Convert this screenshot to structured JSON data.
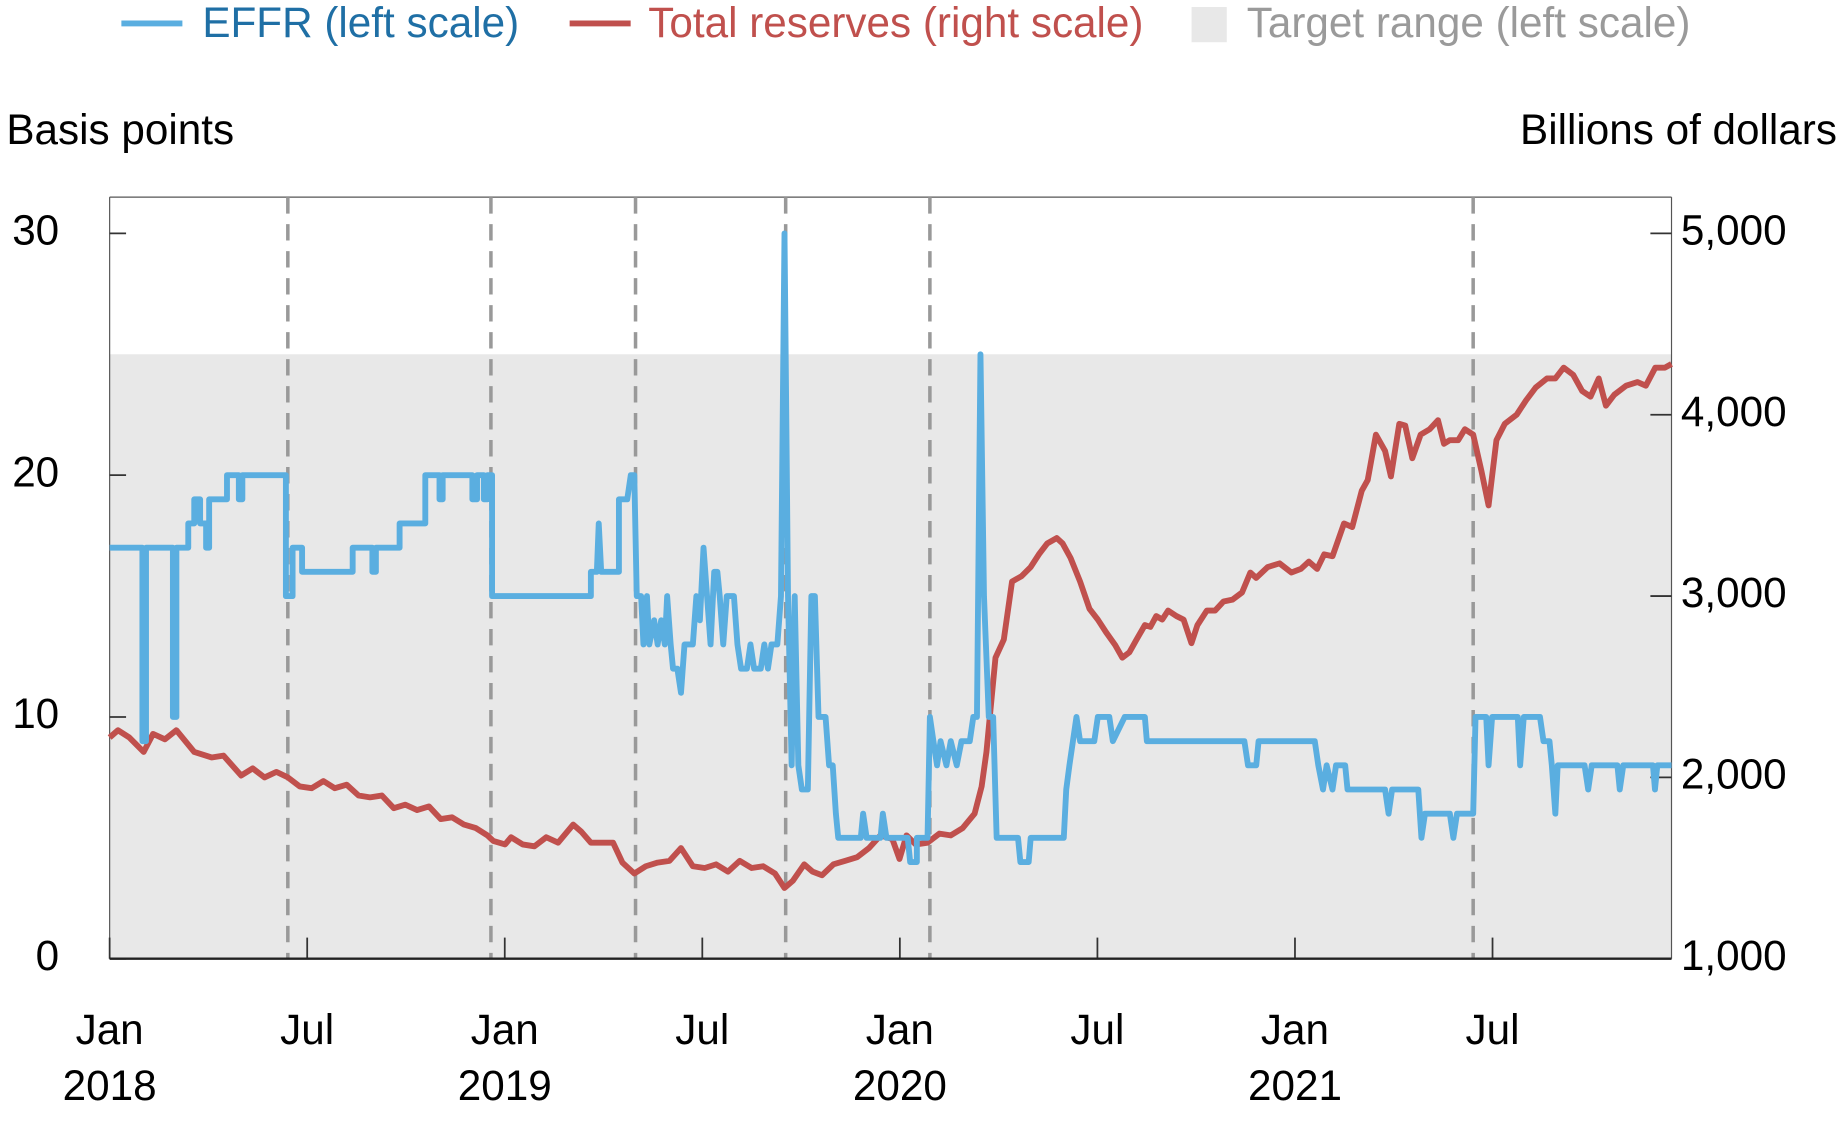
{
  "chart_data": {
    "type": "line",
    "ylabel": "Basis points",
    "y2label": "Billions of dollars",
    "xlim": [
      2018.0,
      2021.953
    ],
    "ylim": [
      0,
      31.5
    ],
    "y2lim": [
      1000,
      5200
    ],
    "yticks": [
      0,
      10,
      20,
      30
    ],
    "y2ticks": [
      {
        "value": 1000,
        "label": "1,000"
      },
      {
        "value": 2000,
        "label": "2,000"
      },
      {
        "value": 3000,
        "label": "3,000"
      },
      {
        "value": 4000,
        "label": "4,000"
      },
      {
        "value": 5000,
        "label": "5,000"
      }
    ],
    "xticks": [
      {
        "value": 2018.0,
        "label": "Jan"
      },
      {
        "value": 2018.5,
        "label": "Jul"
      },
      {
        "value": 2019.0,
        "label": "Jan"
      },
      {
        "value": 2019.5,
        "label": "Jul"
      },
      {
        "value": 2020.0,
        "label": "Jan"
      },
      {
        "value": 2020.5,
        "label": "Jul"
      },
      {
        "value": 2021.0,
        "label": "Jan"
      },
      {
        "value": 2021.5,
        "label": "Jul"
      }
    ],
    "year_ticks": [
      2018,
      2019,
      2020,
      2021
    ],
    "vlines": [
      2018.451,
      2018.965,
      2019.331,
      2019.711,
      2020.076,
      2021.451
    ],
    "vline_color": "#999999",
    "target_range": {
      "name": "Target range (left scale)",
      "color": "#e8e8e8",
      "legend_text_color": "#9a9a9a",
      "values": [
        0,
        25
      ]
    },
    "series": [
      {
        "name": "EFFR (left scale)",
        "color": "#5aaee0",
        "legend_text_color": "#1f6fa5",
        "axis": "y",
        "x": [
          2018.0,
          2018.083,
          2018.083,
          2018.092,
          2018.092,
          2018.16,
          2018.16,
          2018.169,
          2018.169,
          2018.199,
          2018.199,
          2018.214,
          2018.214,
          2018.229,
          2018.229,
          2018.244,
          2018.244,
          2018.252,
          2018.252,
          2018.297,
          2018.297,
          2018.327,
          2018.327,
          2018.336,
          2018.336,
          2018.446,
          2018.446,
          2018.463,
          2018.463,
          2018.487,
          2018.487,
          2018.615,
          2018.615,
          2018.665,
          2018.665,
          2018.674,
          2018.674,
          2018.734,
          2018.734,
          2018.799,
          2018.799,
          2018.835,
          2018.835,
          2018.843,
          2018.843,
          2018.918,
          2018.918,
          2018.93,
          2018.93,
          2018.947,
          2018.947,
          2018.956,
          2018.956,
          2018.968,
          2018.968,
          2019.218,
          2019.218,
          2019.233,
          2019.238,
          2019.244,
          2019.289,
          2019.289,
          2019.31,
          2019.319,
          2019.328,
          2019.334,
          2019.345,
          2019.351,
          2019.36,
          2019.366,
          2019.378,
          2019.387,
          2019.396,
          2019.405,
          2019.411,
          2019.42,
          2019.426,
          2019.437,
          2019.446,
          2019.455,
          2019.476,
          2019.485,
          2019.494,
          2019.503,
          2019.512,
          2019.521,
          2019.53,
          2019.538,
          2019.544,
          2019.553,
          2019.562,
          2019.58,
          2019.589,
          2019.598,
          2019.613,
          2019.622,
          2019.631,
          2019.648,
          2019.657,
          2019.666,
          2019.675,
          2019.69,
          2019.699,
          2019.708,
          2019.717,
          2019.726,
          2019.734,
          2019.743,
          2019.752,
          2019.767,
          2019.776,
          2019.785,
          2019.794,
          2019.812,
          2019.821,
          2019.83,
          2019.838,
          2019.844,
          2019.901,
          2019.907,
          2019.916,
          2019.951,
          2019.957,
          2019.966,
          2020.02,
          2020.026,
          2020.043,
          2020.043,
          2020.07,
          2020.076,
          2020.085,
          2020.094,
          2020.103,
          2020.118,
          2020.129,
          2020.144,
          2020.156,
          2020.177,
          2020.186,
          2020.195,
          2020.204,
          2020.213,
          2020.225,
          2020.236,
          2020.245,
          2020.299,
          2020.305,
          2020.326,
          2020.331,
          2020.415,
          2020.421,
          2020.429,
          2020.438,
          2020.447,
          2020.456,
          2020.492,
          2020.501,
          2020.53,
          2020.539,
          2020.569,
          2020.62,
          2020.625,
          2020.872,
          2020.881,
          2020.902,
          2020.908,
          2021.05,
          2021.059,
          2021.071,
          2021.08,
          2021.095,
          2021.104,
          2021.127,
          2021.133,
          2021.228,
          2021.237,
          2021.246,
          2021.312,
          2021.32,
          2021.329,
          2021.392,
          2021.401,
          2021.41,
          2021.451,
          2021.457,
          2021.484,
          2021.49,
          2021.499,
          2021.564,
          2021.57,
          2021.579,
          2021.62,
          2021.629,
          2021.644,
          2021.65,
          2021.659,
          2021.665,
          2021.733,
          2021.742,
          2021.751,
          2021.816,
          2021.822,
          2021.831,
          2021.906,
          2021.911,
          2021.917,
          2021.953
        ],
        "values": [
          17,
          17,
          9,
          9,
          17,
          17,
          10,
          10,
          17,
          17,
          18,
          18,
          19,
          19,
          18,
          18,
          17,
          17,
          19,
          19,
          20,
          20,
          19,
          19,
          20,
          20,
          15,
          15,
          17,
          17,
          16,
          16,
          17,
          17,
          16,
          16,
          17,
          17,
          18,
          18,
          20,
          20,
          19,
          19,
          20,
          20,
          19,
          19,
          20,
          20,
          19,
          19,
          20,
          20,
          15,
          15,
          16,
          16,
          18,
          16,
          16,
          19,
          19,
          20,
          20,
          15,
          15,
          13,
          15,
          13,
          14,
          13,
          14,
          13,
          15,
          13,
          12,
          12,
          11,
          13,
          13,
          15,
          14,
          17,
          15,
          13,
          16,
          16,
          15,
          13,
          15,
          15,
          13,
          12,
          12,
          13,
          12,
          12,
          13,
          12,
          13,
          13,
          15,
          30,
          15,
          8,
          15,
          8,
          7,
          7,
          15,
          15,
          10,
          10,
          8,
          8,
          6,
          5,
          5,
          6,
          5,
          5,
          6,
          5,
          5,
          4,
          4,
          5,
          5,
          10,
          9,
          8,
          9,
          8,
          9,
          8,
          9,
          9,
          10,
          10,
          25,
          15,
          10,
          10,
          5,
          5,
          4,
          4,
          5,
          5,
          7,
          8,
          9,
          10,
          9,
          9,
          10,
          10,
          9,
          10,
          10,
          9,
          9,
          8,
          8,
          9,
          9,
          8,
          7,
          8,
          7,
          8,
          8,
          7,
          7,
          6,
          7,
          7,
          5,
          6,
          6,
          5,
          6,
          6,
          10,
          10,
          8,
          10,
          10,
          8,
          10,
          10,
          9,
          9,
          8,
          6,
          8,
          8,
          7,
          8,
          8,
          7,
          8,
          8,
          7,
          8,
          8
        ]
      },
      {
        "name": "Total reserves (right scale)",
        "color": "#c0504d",
        "legend_text_color": "#c0504d",
        "axis": "y2",
        "x": [
          2018.0,
          2018.021,
          2018.05,
          2018.086,
          2018.11,
          2018.14,
          2018.169,
          2018.214,
          2018.258,
          2018.288,
          2018.333,
          2018.362,
          2018.392,
          2018.422,
          2018.451,
          2018.481,
          2018.511,
          2018.541,
          2018.57,
          2018.6,
          2018.63,
          2018.659,
          2018.689,
          2018.719,
          2018.748,
          2018.778,
          2018.808,
          2018.838,
          2018.867,
          2018.897,
          2018.927,
          2018.956,
          2018.971,
          2019.001,
          2019.016,
          2019.045,
          2019.075,
          2019.105,
          2019.135,
          2019.173,
          2019.194,
          2019.218,
          2019.253,
          2019.274,
          2019.298,
          2019.328,
          2019.357,
          2019.387,
          2019.417,
          2019.446,
          2019.476,
          2019.506,
          2019.535,
          2019.565,
          2019.595,
          2019.625,
          2019.654,
          2019.684,
          2019.708,
          2019.729,
          2019.758,
          2019.779,
          2019.803,
          2019.832,
          2019.862,
          2019.892,
          2019.922,
          2019.951,
          2019.981,
          2019.999,
          2020.017,
          2020.04,
          2020.07,
          2020.1,
          2020.129,
          2020.159,
          2020.189,
          2020.207,
          2020.219,
          2020.242,
          2020.263,
          2020.284,
          2020.308,
          2020.331,
          2020.352,
          2020.373,
          2020.397,
          2020.412,
          2020.432,
          2020.456,
          2020.48,
          2020.501,
          2020.522,
          2020.545,
          2020.563,
          2020.581,
          2020.599,
          2020.62,
          2020.634,
          2020.649,
          2020.664,
          2020.679,
          2020.7,
          2020.718,
          2020.738,
          2020.753,
          2020.777,
          2020.798,
          2020.819,
          2020.842,
          2020.866,
          2020.887,
          2020.902,
          2020.931,
          2020.961,
          2020.991,
          2021.015,
          2021.035,
          2021.056,
          2021.074,
          2021.095,
          2021.124,
          2021.145,
          2021.169,
          2021.184,
          2021.205,
          2021.228,
          2021.243,
          2021.264,
          2021.279,
          2021.297,
          2021.318,
          2021.341,
          2021.362,
          2021.377,
          2021.392,
          2021.413,
          2021.43,
          2021.451,
          2021.472,
          2021.49,
          2021.51,
          2021.531,
          2021.561,
          2021.585,
          2021.609,
          2021.638,
          2021.659,
          2021.68,
          2021.704,
          2021.727,
          2021.748,
          2021.769,
          2021.787,
          2021.808,
          2021.838,
          2021.867,
          2021.888,
          2021.912,
          2021.936,
          2021.953
        ],
        "values": [
          2220,
          2260,
          2220,
          2140,
          2240,
          2210,
          2260,
          2140,
          2110,
          2120,
          2010,
          2050,
          2000,
          2030,
          2000,
          1950,
          1940,
          1980,
          1940,
          1960,
          1900,
          1890,
          1900,
          1830,
          1850,
          1820,
          1840,
          1770,
          1780,
          1740,
          1720,
          1680,
          1650,
          1630,
          1670,
          1630,
          1620,
          1670,
          1640,
          1740,
          1700,
          1640,
          1640,
          1640,
          1530,
          1470,
          1510,
          1530,
          1540,
          1610,
          1510,
          1500,
          1520,
          1480,
          1540,
          1500,
          1510,
          1470,
          1390,
          1430,
          1520,
          1480,
          1460,
          1520,
          1540,
          1560,
          1610,
          1680,
          1660,
          1550,
          1680,
          1630,
          1640,
          1690,
          1680,
          1720,
          1800,
          1950,
          2140,
          2660,
          2760,
          3080,
          3110,
          3160,
          3230,
          3290,
          3320,
          3290,
          3210,
          3080,
          2930,
          2870,
          2800,
          2730,
          2660,
          2690,
          2760,
          2840,
          2830,
          2890,
          2870,
          2920,
          2890,
          2870,
          2740,
          2840,
          2920,
          2920,
          2970,
          2980,
          3020,
          3130,
          3100,
          3160,
          3180,
          3130,
          3150,
          3190,
          3150,
          3230,
          3220,
          3400,
          3380,
          3580,
          3640,
          3890,
          3800,
          3660,
          3950,
          3940,
          3760,
          3890,
          3920,
          3970,
          3840,
          3860,
          3860,
          3920,
          3890,
          3690,
          3500,
          3860,
          3950,
          4000,
          4080,
          4150,
          4200,
          4200,
          4260,
          4220,
          4130,
          4100,
          4200,
          4050,
          4110,
          4160,
          4180,
          4160,
          4260,
          4260,
          4280
        ]
      }
    ]
  }
}
